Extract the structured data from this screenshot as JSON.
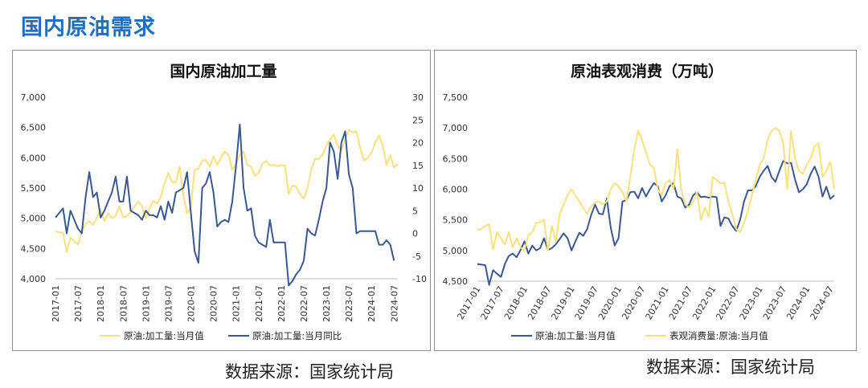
{
  "page": {
    "title": "国内原油需求",
    "source_left": "数据来源：国家统计局",
    "source_right": "数据来源：国家统计局"
  },
  "colors": {
    "yellow": "#fbe07c",
    "navy": "#3a5894",
    "negative_tick": "#d93025"
  },
  "chart_data": [
    {
      "type": "line",
      "title": "国内原油加工量",
      "x_tick_labels": [
        "2017-01",
        "2017-07",
        "2018-01",
        "2018-07",
        "2019-01",
        "2019-07",
        "2020-01",
        "2020-07",
        "2021-01",
        "2021-07",
        "2022-01",
        "2022-07",
        "2023-01",
        "2023-07",
        "2024-01",
        "2024-07"
      ],
      "ylim": [
        4000,
        7000
      ],
      "yticks": [
        "4,000",
        "4,500",
        "5,000",
        "5,500",
        "6,000",
        "6,500",
        "7,000"
      ],
      "y2lim": [
        -10,
        30
      ],
      "y2ticks": [
        "-10",
        "-5",
        "0",
        "5",
        "10",
        "15",
        "20",
        "25",
        "30"
      ],
      "grid": false,
      "legend": "bottom",
      "series": [
        {
          "name": "原油:加工量:当月值",
          "axis": "left",
          "color": "yellow",
          "start": "2017-01",
          "values": [
            4780,
            4770,
            4760,
            4440,
            4680,
            4620,
            4570,
            4780,
            4910,
            4950,
            4890,
            5010,
            5150,
            4950,
            5080,
            5000,
            5040,
            5200,
            5010,
            5040,
            5100,
            5190,
            5280,
            5200,
            5000,
            5150,
            5290,
            5240,
            5350,
            5580,
            5750,
            5600,
            5590,
            5850,
            5370,
            5080,
            5200,
            5800,
            5820,
            5950,
            5960,
            5850,
            6020,
            5880,
            6000,
            6100,
            6050,
            5800,
            5900,
            6050,
            6100,
            5880,
            5850,
            5700,
            5750,
            5900,
            5950,
            5870,
            5880,
            5860,
            5880,
            5870,
            5400,
            5540,
            5520,
            5400,
            5320,
            5500,
            5800,
            5980,
            5980,
            6050,
            6200,
            6300,
            6380,
            6200,
            6120,
            6300,
            6460,
            6420,
            6430,
            6160,
            5950,
            6000,
            6080,
            6250,
            6370,
            6200,
            5880,
            6040,
            5840,
            5900
          ]
        },
        {
          "name": "原油:加工量:当月同比",
          "axis": "right",
          "color": "navy",
          "start": "2017-01",
          "values": [
            3.5,
            4.5,
            5.5,
            0,
            5,
            3,
            1,
            0,
            8,
            13.5,
            8,
            9,
            3.5,
            5,
            7,
            9,
            12.5,
            7,
            7,
            12.5,
            5,
            4.5,
            4,
            3,
            5,
            4,
            4,
            3.5,
            6,
            3,
            7,
            4.5,
            9,
            9.5,
            10,
            13.5,
            4.5,
            -4,
            -6.5,
            10,
            11,
            13.5,
            9,
            1.5,
            2.5,
            3,
            2.5,
            7,
            15,
            24,
            10,
            5,
            5.5,
            -0.5,
            -2,
            -2.5,
            -3,
            3,
            -2,
            -2,
            -2,
            -2,
            -11.5,
            -10.5,
            -9,
            -8,
            -6,
            1,
            0,
            -0.5,
            3,
            7,
            10,
            20,
            18,
            12,
            20,
            22.5,
            13,
            10,
            0,
            0.5,
            0.5,
            0.5,
            0.5,
            0.5,
            -2.5,
            -2.5,
            -1.5,
            -2.5,
            -6
          ]
        }
      ]
    },
    {
      "type": "line",
      "title": "原油表观消费（万吨）",
      "x_tick_labels": [
        "2017-01",
        "2017-07",
        "2018-01",
        "2018-07",
        "2019-01",
        "2019-07",
        "2020-01",
        "2020-07",
        "2021-01",
        "2021-07",
        "2022-01",
        "2022-07",
        "2023-01",
        "2023-07",
        "2024-01",
        "2024-07"
      ],
      "ylim": [
        4500,
        7500
      ],
      "yticks": [
        "4,500",
        "5,000",
        "5,500",
        "6,000",
        "6,500",
        "7,000",
        "7,500"
      ],
      "grid": false,
      "legend": "bottom",
      "series": [
        {
          "name": "原油:加工量:当月值",
          "color": "navy",
          "start": "2017-01",
          "values": [
            4780,
            4770,
            4760,
            4440,
            4680,
            4620,
            4570,
            4780,
            4910,
            4950,
            4890,
            5010,
            5150,
            4950,
            5080,
            5000,
            5040,
            5200,
            5010,
            5040,
            5100,
            5190,
            5280,
            5200,
            5000,
            5150,
            5290,
            5240,
            5350,
            5580,
            5750,
            5600,
            5590,
            5850,
            5370,
            5080,
            5200,
            5800,
            5820,
            5950,
            5960,
            5850,
            6020,
            5880,
            6000,
            6100,
            6050,
            5800,
            5900,
            6050,
            6100,
            5880,
            5850,
            5700,
            5750,
            5900,
            5950,
            5870,
            5880,
            5860,
            5880,
            5870,
            5400,
            5540,
            5520,
            5400,
            5320,
            5500,
            5800,
            5980,
            5980,
            6050,
            6200,
            6300,
            6380,
            6200,
            6120,
            6300,
            6460,
            6420,
            6430,
            6160,
            5950,
            6000,
            6080,
            6250,
            6370,
            6200,
            5880,
            6040,
            5840,
            5900
          ]
        },
        {
          "name": "表观消费量:原油:当月值",
          "color": "yellow",
          "start": "2017-01",
          "values": [
            5330,
            5350,
            5400,
            5430,
            5020,
            5300,
            5200,
            5100,
            5300,
            5050,
            5200,
            5050,
            5000,
            5250,
            5300,
            5450,
            5460,
            5500,
            5000,
            5400,
            5150,
            5600,
            5750,
            5900,
            6000,
            5900,
            5800,
            5700,
            5600,
            5720,
            5780,
            5800,
            5750,
            5800,
            6000,
            6100,
            6050,
            5950,
            5800,
            6200,
            6650,
            6950,
            6800,
            6600,
            6400,
            6350,
            6000,
            5900,
            6100,
            6150,
            6000,
            6650,
            5990,
            5750,
            5700,
            5800,
            5950,
            5500,
            5700,
            5550,
            6200,
            6150,
            6100,
            6100,
            5800,
            5600,
            5350,
            5300,
            5450,
            5650,
            5900,
            6150,
            6400,
            6500,
            6800,
            6950,
            7000,
            6950,
            6750,
            6000,
            6950,
            6500,
            6300,
            6250,
            6400,
            6500,
            6700,
            6750,
            6200,
            6300,
            6450,
            6000
          ]
        }
      ]
    }
  ]
}
